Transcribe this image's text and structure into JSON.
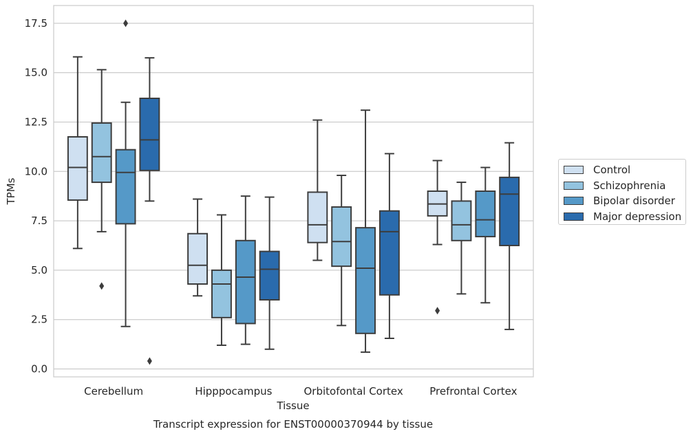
{
  "chart_data": {
    "type": "box",
    "title": "",
    "caption": "Transcript expression for ENST00000370944 by tissue",
    "xlabel": "Tissue",
    "ylabel": "TPMs",
    "ylim": [
      -0.4,
      18.4
    ],
    "yticks": [
      0.0,
      2.5,
      5.0,
      7.5,
      10.0,
      12.5,
      15.0,
      17.5
    ],
    "ytick_labels": [
      "0.0",
      "2.5",
      "5.0",
      "7.5",
      "10.0",
      "12.5",
      "15.0",
      "17.5"
    ],
    "grid": "horizontal",
    "legend_position": "right",
    "categories": [
      "Cerebellum",
      "Hipppocampus",
      "Orbitofontal Cortex",
      "Prefrontal Cortex"
    ],
    "series": [
      {
        "name": "Control",
        "color": "#cfe0f1",
        "boxes": [
          {
            "whisker_low": 6.1,
            "q1": 8.55,
            "median": 10.2,
            "q3": 11.75,
            "whisker_high": 15.8,
            "outliers": []
          },
          {
            "whisker_low": 3.7,
            "q1": 4.3,
            "median": 5.25,
            "q3": 6.85,
            "whisker_high": 8.6,
            "outliers": []
          },
          {
            "whisker_low": 5.5,
            "q1": 6.4,
            "median": 7.3,
            "q3": 8.95,
            "whisker_high": 12.6,
            "outliers": []
          },
          {
            "whisker_low": 6.3,
            "q1": 7.75,
            "median": 8.35,
            "q3": 9.0,
            "whisker_high": 10.55,
            "outliers": [
              2.95
            ]
          }
        ]
      },
      {
        "name": "Schizophrenia",
        "color": "#93c3df",
        "boxes": [
          {
            "whisker_low": 6.95,
            "q1": 9.45,
            "median": 10.75,
            "q3": 12.45,
            "whisker_high": 15.15,
            "outliers": [
              4.2
            ]
          },
          {
            "whisker_low": 1.2,
            "q1": 2.6,
            "median": 4.3,
            "q3": 5.0,
            "whisker_high": 7.8,
            "outliers": []
          },
          {
            "whisker_low": 2.2,
            "q1": 5.2,
            "median": 6.45,
            "q3": 8.2,
            "whisker_high": 9.8,
            "outliers": []
          },
          {
            "whisker_low": 3.8,
            "q1": 6.5,
            "median": 7.3,
            "q3": 8.5,
            "whisker_high": 9.45,
            "outliers": []
          }
        ]
      },
      {
        "name": "Bipolar disorder",
        "color": "#5599c8",
        "boxes": [
          {
            "whisker_low": 2.15,
            "q1": 7.35,
            "median": 9.95,
            "q3": 11.1,
            "whisker_high": 13.5,
            "outliers": [
              17.5
            ]
          },
          {
            "whisker_low": 1.25,
            "q1": 2.3,
            "median": 4.65,
            "q3": 6.5,
            "whisker_high": 8.75,
            "outliers": []
          },
          {
            "whisker_low": 0.85,
            "q1": 1.8,
            "median": 5.1,
            "q3": 7.15,
            "whisker_high": 13.1,
            "outliers": []
          },
          {
            "whisker_low": 3.35,
            "q1": 6.7,
            "median": 7.55,
            "q3": 9.0,
            "whisker_high": 10.2,
            "outliers": []
          }
        ]
      },
      {
        "name": "Major depression",
        "color": "#2a6bad",
        "boxes": [
          {
            "whisker_low": 8.5,
            "q1": 10.05,
            "median": 11.6,
            "q3": 13.7,
            "whisker_high": 15.75,
            "outliers": [
              0.4
            ]
          },
          {
            "whisker_low": 1.0,
            "q1": 3.5,
            "median": 5.05,
            "q3": 5.95,
            "whisker_high": 8.7,
            "outliers": []
          },
          {
            "whisker_low": 1.55,
            "q1": 3.75,
            "median": 6.95,
            "q3": 8.0,
            "whisker_high": 10.9,
            "outliers": []
          },
          {
            "whisker_low": 2.0,
            "q1": 6.25,
            "median": 8.85,
            "q3": 9.7,
            "whisker_high": 11.45,
            "outliers": []
          }
        ]
      }
    ]
  }
}
